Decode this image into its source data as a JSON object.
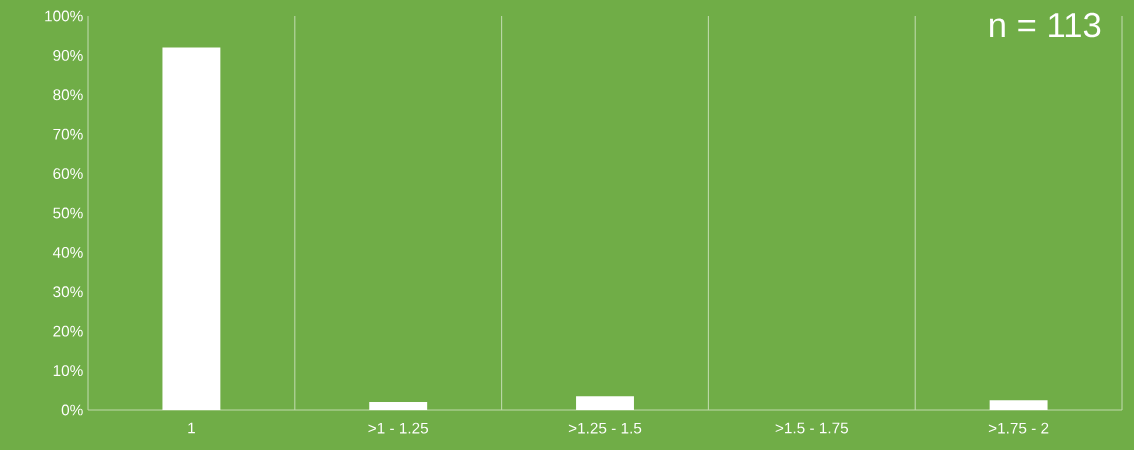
{
  "chart_data": {
    "type": "bar",
    "categories": [
      "1",
      ">1 - 1.25",
      ">1.25 - 1.5",
      ">1.5 - 1.75",
      ">1.75 - 2"
    ],
    "values": [
      92,
      2,
      3.5,
      0,
      2.5
    ],
    "color": "#ffffff",
    "ylim": [
      0,
      100
    ],
    "yticks": [
      {
        "value": 0,
        "label": "0%"
      },
      {
        "value": 10,
        "label": "10%"
      },
      {
        "value": 20,
        "label": "20%"
      },
      {
        "value": 30,
        "label": "30%"
      },
      {
        "value": 40,
        "label": "40%"
      },
      {
        "value": 50,
        "label": "50%"
      },
      {
        "value": 60,
        "label": "60%"
      },
      {
        "value": 70,
        "label": "70%"
      },
      {
        "value": 80,
        "label": "80%"
      },
      {
        "value": 90,
        "label": "90%"
      },
      {
        "value": 100,
        "label": "100%"
      }
    ],
    "grid": "x",
    "annotations": [
      "n = 113"
    ]
  }
}
